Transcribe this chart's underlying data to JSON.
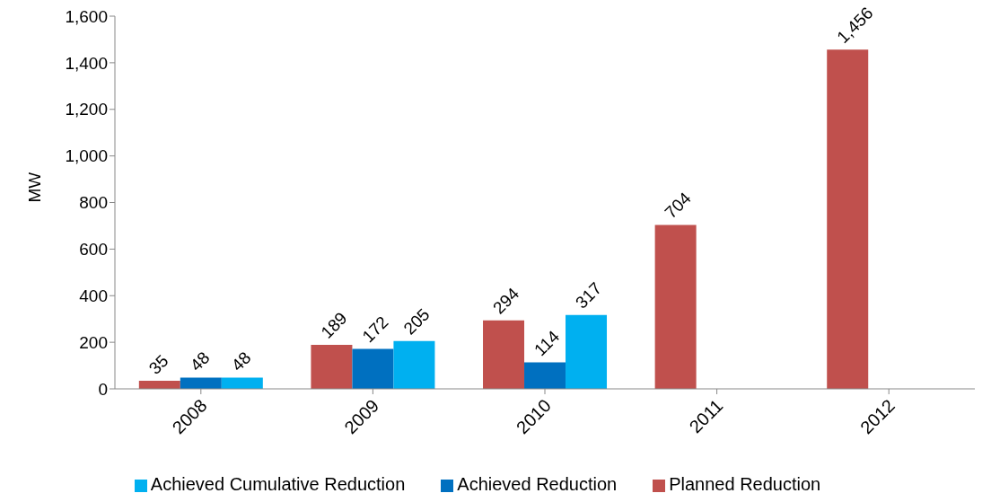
{
  "chart_data": {
    "type": "bar",
    "ylabel": "MW",
    "categories": [
      "2008",
      "2009",
      "2010",
      "2011",
      "2012"
    ],
    "series": [
      {
        "name": "Planned Reduction",
        "color": "#c0504d",
        "values": [
          35,
          189,
          294,
          704,
          1456
        ],
        "value_labels": [
          "35",
          "189",
          "294",
          "704",
          "1,456"
        ]
      },
      {
        "name": "Achieved Reduction",
        "color": "#0070c0",
        "values": [
          48,
          172,
          114,
          null,
          null
        ],
        "value_labels": [
          "48",
          "172",
          "114",
          null,
          null
        ]
      },
      {
        "name": "Achieved Cumulative Reduction",
        "color": "#00b0f0",
        "values": [
          48,
          205,
          317,
          null,
          null
        ],
        "value_labels": [
          "48",
          "205",
          "317",
          null,
          null
        ]
      }
    ],
    "ylim": [
      0,
      1600
    ],
    "yticks": [
      0,
      200,
      400,
      600,
      800,
      {
        "value": 1000,
        "label": "1,000"
      },
      {
        "value": 1200,
        "label": "1,200"
      },
      {
        "value": 1400,
        "label": "1,400"
      },
      {
        "value": 1600,
        "label": "1,600"
      }
    ],
    "grid": false,
    "legend": "bottom"
  }
}
